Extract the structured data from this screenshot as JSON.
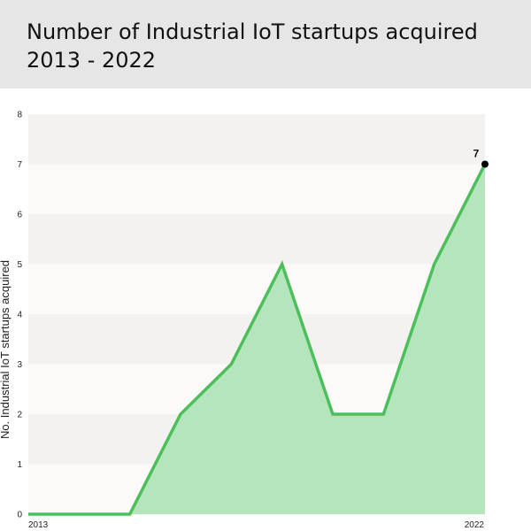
{
  "header": {
    "title_line1": "Number of Industrial IoT startups acquired",
    "title_line2": "2013 - 2022"
  },
  "chart_data": {
    "type": "area",
    "title": "Number of Industrial IoT startups acquired 2013 - 2022",
    "xlabel": "",
    "ylabel": "No. Industrial IoT startups acquired",
    "x": [
      2013,
      2014,
      2015,
      2016,
      2017,
      2018,
      2019,
      2020,
      2021,
      2022
    ],
    "x_tick_labels": [
      "2013",
      "2022"
    ],
    "values": [
      0,
      0,
      0,
      2,
      3,
      5,
      2,
      2,
      5,
      7
    ],
    "ylim": [
      0,
      8
    ],
    "y_ticks": [
      0,
      1,
      2,
      3,
      4,
      5,
      6,
      7,
      8
    ],
    "annotations": [
      {
        "x": 2022,
        "y": 7,
        "text": "7"
      }
    ],
    "grid": "alternating horizontal bands",
    "legend": "none",
    "colors": {
      "line": "#4cbf5a",
      "fill": "#b5e5bd",
      "band_dark": "#f4f2f0",
      "band_light": "#fbfaf9",
      "marker": "#000000"
    }
  }
}
